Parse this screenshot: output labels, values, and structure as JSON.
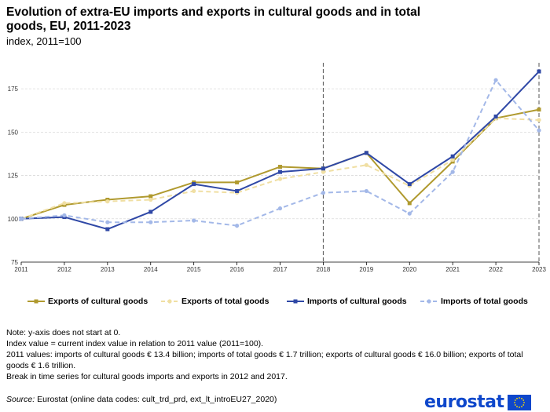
{
  "header": {
    "title": "Evolution of extra-EU imports and exports in cultural goods and in total goods, EU, 2011-2023",
    "subtitle": "index, 2011=100"
  },
  "chart_data": {
    "type": "line",
    "x": [
      "2011",
      "2012",
      "2013",
      "2014",
      "2015",
      "2016",
      "2017",
      "2018",
      "2019",
      "2020",
      "2021",
      "2022",
      "2023"
    ],
    "ylim": [
      75,
      190
    ],
    "yticks": [
      75,
      100,
      125,
      150,
      175
    ],
    "grid": true,
    "y_axis_note": "y-axis does not start at 0",
    "vertical_markers": [
      "2018",
      "2023"
    ],
    "legend_position": "bottom",
    "series": [
      {
        "name": "Exports of cultural goods",
        "color": "#b09a2f",
        "dashed": false,
        "values": [
          100,
          108,
          111,
          113,
          121,
          121,
          130,
          129,
          138,
          109,
          133,
          158,
          163
        ]
      },
      {
        "name": "Exports of total goods",
        "color": "#f0dfa3",
        "dashed": true,
        "values": [
          100,
          109,
          110,
          111,
          116,
          115,
          123,
          127,
          131,
          119,
          134,
          158,
          157
        ]
      },
      {
        "name": "Imports of cultural goods",
        "color": "#2f48a6",
        "dashed": false,
        "values": [
          100,
          101,
          94,
          104,
          120,
          116,
          127,
          129,
          138,
          120,
          136,
          159,
          185
        ]
      },
      {
        "name": "Imports of total goods",
        "color": "#a3b8e8",
        "dashed": true,
        "values": [
          100,
          102,
          98,
          98,
          99,
          96,
          106,
          115,
          116,
          103,
          127,
          180,
          151
        ]
      }
    ]
  },
  "notes": [
    "Note: y-axis does not start at 0.",
    "Index value = current index value in relation to 2011 value (2011=100).",
    "2011 values: imports of cultural goods € 13.4 billion; imports of total goods € 1.7 trillion; exports of cultural goods € 16.0 billion; exports of total goods € 1.6 trillion.",
    "Break in time series for cultural goods imports and exports in 2012 and 2017."
  ],
  "source": {
    "label": "Source:",
    "text": " Eurostat (online data codes: cult_trd_prd, ext_lt_introEU27_2020)"
  },
  "logo": {
    "text": "eurostat"
  }
}
